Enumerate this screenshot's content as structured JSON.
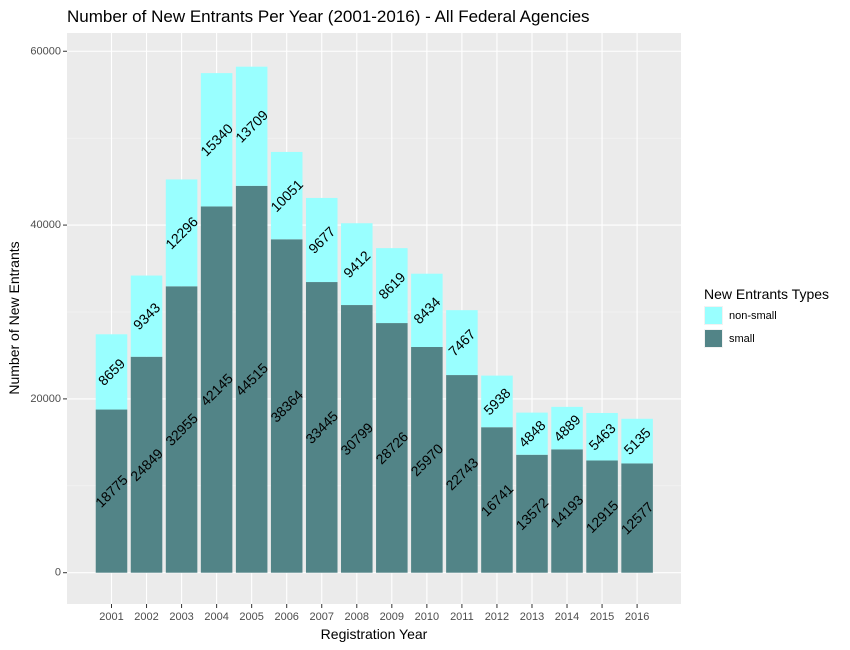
{
  "chart_data": {
    "type": "bar",
    "stacked": true,
    "title": "Number of New Entrants Per Year (2001-2016) - All Federal Agencies",
    "xlabel": "Registration Year",
    "ylabel": "Number of New Entrants",
    "ylim": [
      -3600,
      62100
    ],
    "y_ticks": [
      0,
      20000,
      40000,
      60000
    ],
    "y_tick_labels": [
      "0",
      "20000",
      "40000",
      "60000"
    ],
    "grid": true,
    "legend_position": "right",
    "categories": [
      "2001",
      "2002",
      "2003",
      "2004",
      "2005",
      "2006",
      "2007",
      "2008",
      "2009",
      "2010",
      "2011",
      "2012",
      "2013",
      "2014",
      "2015",
      "2016"
    ],
    "series": [
      {
        "name": "small",
        "color": "#528487",
        "values": [
          18775,
          24849,
          32955,
          42145,
          44515,
          38364,
          33445,
          30799,
          28726,
          25970,
          22743,
          16741,
          13572,
          14193,
          12915,
          12577
        ],
        "labels": [
          "18775",
          "24849",
          "32955",
          "42145",
          "44515",
          "38364",
          "33445",
          "30799",
          "28726",
          "25970",
          "22743",
          "16741",
          "13572",
          "14193",
          "12915",
          "12577"
        ]
      },
      {
        "name": "non-small",
        "color": "#99FFFF",
        "values": [
          8659,
          9343,
          12296,
          15340,
          13709,
          10051,
          9677,
          9412,
          8619,
          8434,
          7467,
          5938,
          4848,
          4889,
          5463,
          5135
        ],
        "labels": [
          "8659",
          "9343",
          "12296",
          "15340",
          "13709",
          "10051",
          "9677",
          "9412",
          "8619",
          "8434",
          "7467",
          "5938",
          "4848",
          "4889",
          "5463",
          "5135"
        ]
      }
    ],
    "legend": {
      "title": "New Entrants Types",
      "entries": [
        {
          "name": "non-small",
          "color": "#99FFFF"
        },
        {
          "name": "small",
          "color": "#528487"
        }
      ]
    }
  }
}
